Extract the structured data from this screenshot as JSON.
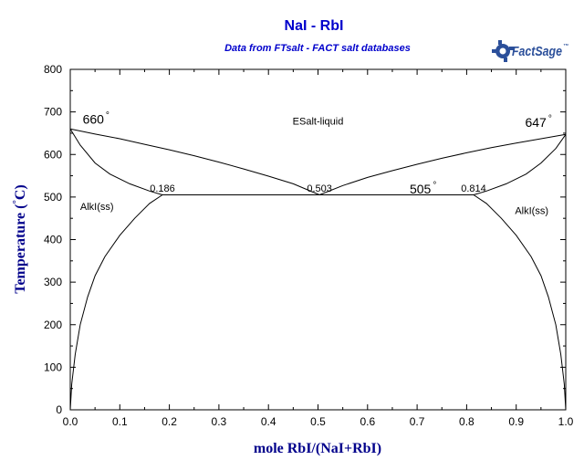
{
  "chart_data": {
    "type": "line",
    "title": "NaI - RbI",
    "subtitle": "Data from FTsalt - FACT salt databases",
    "logo_text": "FactSage",
    "logo_mark": "™",
    "xlabel": "mole RbI/(NaI+RbI)",
    "ylabel_pre": "Temperature (",
    "ylabel_deg": "°",
    "ylabel_post": "C)",
    "xlim": [
      0,
      1
    ],
    "ylim": [
      0,
      800
    ],
    "x_ticks": [
      "0.0",
      "0.1",
      "0.2",
      "0.3",
      "0.4",
      "0.5",
      "0.6",
      "0.7",
      "0.8",
      "0.9",
      "1.0"
    ],
    "y_ticks": [
      "0",
      "100",
      "200",
      "300",
      "400",
      "500",
      "600",
      "700",
      "800"
    ],
    "grid": false,
    "title_color": "#0000cc",
    "axis_label_color": "#00008b",
    "line_color": "#000000",
    "series": [
      {
        "x": [
          0.0,
          0.05,
          0.1,
          0.15,
          0.2,
          0.25,
          0.3,
          0.35,
          0.4,
          0.45,
          0.503
        ],
        "y": [
          660,
          648,
          637,
          624,
          611,
          597,
          582,
          566,
          549,
          531,
          505
        ]
      },
      {
        "x": [
          0.503,
          0.55,
          0.6,
          0.65,
          0.7,
          0.75,
          0.8,
          0.85,
          0.9,
          0.95,
          1.0
        ],
        "y": [
          505,
          527,
          546,
          562,
          577,
          591,
          604,
          616,
          627,
          637,
          647
        ]
      },
      {
        "x": [
          0.0,
          0.02,
          0.05,
          0.08,
          0.12,
          0.16,
          0.186
        ],
        "y": [
          660,
          622,
          580,
          554,
          531,
          514,
          505
        ]
      },
      {
        "x": [
          0.814,
          0.84,
          0.88,
          0.92,
          0.95,
          0.98,
          1.0
        ],
        "y": [
          505,
          514,
          531,
          554,
          580,
          614,
          647
        ]
      },
      {
        "x": [
          0.186,
          0.814
        ],
        "y": [
          505,
          505
        ]
      },
      {
        "x": [
          0.0,
          0.003,
          0.01,
          0.02,
          0.035,
          0.05,
          0.07,
          0.1,
          0.13,
          0.16,
          0.186
        ],
        "y": [
          0,
          60,
          130,
          200,
          265,
          315,
          360,
          410,
          450,
          485,
          505
        ]
      },
      {
        "x": [
          0.814,
          0.84,
          0.87,
          0.9,
          0.93,
          0.95,
          0.965,
          0.98,
          0.99,
          0.997,
          1.0
        ],
        "y": [
          505,
          485,
          450,
          410,
          360,
          315,
          265,
          200,
          130,
          60,
          0
        ]
      }
    ],
    "annotations": [
      {
        "text": "ESalt-liquid",
        "x": 0.5,
        "y": 670,
        "style": "anno",
        "anchor": "middle"
      },
      {
        "text": "AlkI(ss)",
        "x": 0.02,
        "y": 470,
        "style": "anno",
        "anchor": "start"
      },
      {
        "text": "AlkI(ss)",
        "x": 0.965,
        "y": 460,
        "style": "anno",
        "anchor": "end"
      },
      {
        "text": "0.186",
        "x": 0.186,
        "y": 513,
        "style": "anno",
        "anchor": "middle"
      },
      {
        "text": "0.503",
        "x": 0.503,
        "y": 513,
        "style": "anno",
        "anchor": "middle"
      },
      {
        "text": "0.814",
        "x": 0.814,
        "y": 513,
        "style": "anno",
        "anchor": "middle"
      },
      {
        "text": "660",
        "x": 0.025,
        "y": 672,
        "style": "temp",
        "anchor": "start",
        "deg": "°"
      },
      {
        "text": "647",
        "x": 0.918,
        "y": 665,
        "style": "temp",
        "anchor": "start",
        "deg": "°"
      },
      {
        "text": "505",
        "x": 0.685,
        "y": 508,
        "style": "temp",
        "anchor": "start",
        "deg": "°"
      }
    ]
  }
}
